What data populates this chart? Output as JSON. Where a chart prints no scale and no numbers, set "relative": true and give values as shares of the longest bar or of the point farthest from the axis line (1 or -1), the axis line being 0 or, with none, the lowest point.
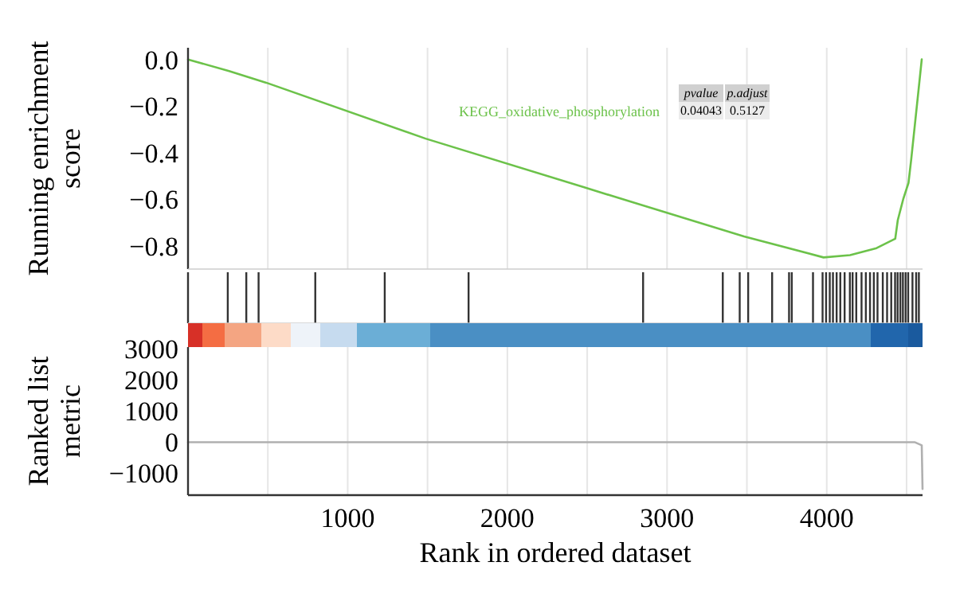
{
  "chart_data": [
    {
      "type": "line",
      "ylabel": "Running enrichment score",
      "xlim": [
        0,
        4600
      ],
      "ylim": [
        -0.9,
        0.05
      ],
      "xticks": [
        {
          "value": 500,
          "label": null
        },
        {
          "value": 1000,
          "label": null
        },
        {
          "value": 1500,
          "label": null
        },
        {
          "value": 2000,
          "label": null
        },
        {
          "value": 2500,
          "label": null
        },
        {
          "value": 3000,
          "label": null
        },
        {
          "value": 3500,
          "label": null
        },
        {
          "value": 4000,
          "label": null
        },
        {
          "value": 4500,
          "label": null
        }
      ],
      "yticks": [
        {
          "value": 0,
          "label": "0.0"
        },
        {
          "value": -0.2,
          "label": "−0.2"
        },
        {
          "value": -0.4,
          "label": "−0.4"
        },
        {
          "value": -0.6,
          "label": "−0.6"
        },
        {
          "value": -0.8,
          "label": "−0.8"
        }
      ],
      "grid": "x",
      "tick_labels": "y",
      "legend": "top right",
      "series": [
        {
          "name": "KEGG_oxidative_phosphorylation",
          "color": "#6cc24a",
          "x": [
            0,
            257,
            490,
            1488,
            2485,
            3482,
            3980,
            4146,
            4312,
            4429,
            4445,
            4479,
            4512,
            4529,
            4552,
            4572,
            4595
          ],
          "values": [
            0,
            -0.05,
            -0.1,
            -0.34,
            -0.55,
            -0.76,
            -0.85,
            -0.84,
            -0.81,
            -0.77,
            -0.69,
            -0.6,
            -0.53,
            -0.43,
            -0.28,
            -0.15,
            0
          ]
        }
      ],
      "annotations": [
        "pvalue",
        "p.adjust",
        "0.04043",
        "0.5127"
      ]
    },
    {
      "type": "bar",
      "relative": true,
      "tick_labels": false,
      "xlim": [
        0,
        4600
      ],
      "color": "#333333",
      "x": [
        0,
        249,
        365,
        442,
        797,
        1232,
        1757,
        2850,
        3349,
        3455,
        3508,
        3658,
        3764,
        3781,
        3914,
        3974,
        3996,
        4019,
        4039,
        4062,
        4085,
        4112,
        4145,
        4162,
        4185,
        4218,
        4245,
        4271,
        4295,
        4318,
        4351,
        4378,
        4404,
        4428,
        4444,
        4461,
        4477,
        4494,
        4510,
        4537,
        4560,
        4577
      ],
      "values": [
        1,
        1,
        1,
        1,
        1,
        1,
        1,
        1,
        1,
        1,
        1,
        1,
        1,
        1,
        1,
        1,
        1,
        1,
        1,
        1,
        1,
        1,
        1,
        1,
        1,
        1,
        1,
        1,
        1,
        1,
        1,
        1,
        1,
        1,
        1,
        1,
        1,
        1,
        1,
        1,
        1,
        1
      ]
    },
    {
      "type": "line",
      "xlabel": "Rank in ordered dataset",
      "ylabel": "Ranked list metric",
      "xlim": [
        0,
        4600
      ],
      "ylim": [
        -1700,
        3050
      ],
      "xticks": [
        {
          "value": 500,
          "label": null
        },
        1000,
        {
          "value": 1500,
          "label": null
        },
        2000,
        {
          "value": 2500,
          "label": null
        },
        3000,
        {
          "value": 3500,
          "label": null
        },
        4000,
        {
          "value": 4500,
          "label": null
        }
      ],
      "yticks": [
        3000,
        2000,
        1000,
        0,
        {
          "value": -1000,
          "label": "−1000"
        }
      ],
      "grid": "x",
      "series": [
        {
          "color": "#b0b0b0",
          "x": [
            0,
            1550,
            2900,
            4550,
            4595,
            4600
          ],
          "values": [
            0,
            0,
            0,
            0,
            -100,
            -1500
          ]
        }
      ]
    }
  ]
}
